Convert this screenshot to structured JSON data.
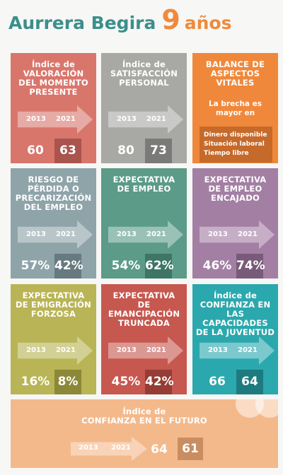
{
  "header": {
    "name": "Aurrera Begira",
    "number": "9",
    "unit": "años"
  },
  "tiles": [
    {
      "title": [
        "Índice de",
        "VALORACIÓN",
        "DEL MOMENTO",
        "PRESENTE"
      ],
      "years": [
        "2013",
        "2021"
      ],
      "values": [
        "60",
        "63"
      ]
    },
    {
      "title": [
        "Índice de",
        "SATISFACCIÓN",
        "PERSONAL"
      ],
      "years": [
        "2013",
        "2021"
      ],
      "values": [
        "80",
        "73"
      ]
    },
    {
      "title": [
        "BALANCE DE",
        "ASPECTOS",
        "VITALES"
      ],
      "subtitle": [
        "La brecha es",
        "mayor en"
      ],
      "items": [
        "Dinero disponible",
        "Situación laboral",
        "Tiempo libre"
      ]
    },
    {
      "title": [
        "RIESGO DE",
        "PÉRDIDA O",
        "PRECARIZACIÓN",
        "DEL EMPLEO"
      ],
      "years": [
        "2013",
        "2021"
      ],
      "values": [
        "57%",
        "42%"
      ]
    },
    {
      "title": [
        "EXPECTATIVA",
        "DE EMPLEO"
      ],
      "years": [
        "2013",
        "2021"
      ],
      "values": [
        "54%",
        "62%"
      ]
    },
    {
      "title": [
        "EXPECTATIVA",
        "DE EMPLEO",
        "ENCAJADO"
      ],
      "years": [
        "2013",
        "2021"
      ],
      "values": [
        "46%",
        "74%"
      ]
    },
    {
      "title": [
        "EXPECTATIVA",
        "DE EMIGRACIÓN",
        "FORZOSA"
      ],
      "years": [
        "2013",
        "2021"
      ],
      "values": [
        "16%",
        "8%"
      ]
    },
    {
      "title": [
        "EXPECTATIVA",
        "DE",
        "EMANCIPACIÓN",
        "TRUNCADA"
      ],
      "years": [
        "2013",
        "2021"
      ],
      "values": [
        "45%",
        "42%"
      ]
    },
    {
      "title": [
        "Índice de",
        "CONFIANZA EN",
        "LAS CAPACIDADES",
        "DE LA JUVENTUD"
      ],
      "years": [
        "2013",
        "2021"
      ],
      "values": [
        "66",
        "64"
      ]
    }
  ],
  "footer": {
    "title": [
      "Índice de",
      "CONFIANZA EN EL FUTURO"
    ],
    "years": [
      "2013",
      "2021"
    ],
    "values": [
      "64",
      "61"
    ]
  }
}
